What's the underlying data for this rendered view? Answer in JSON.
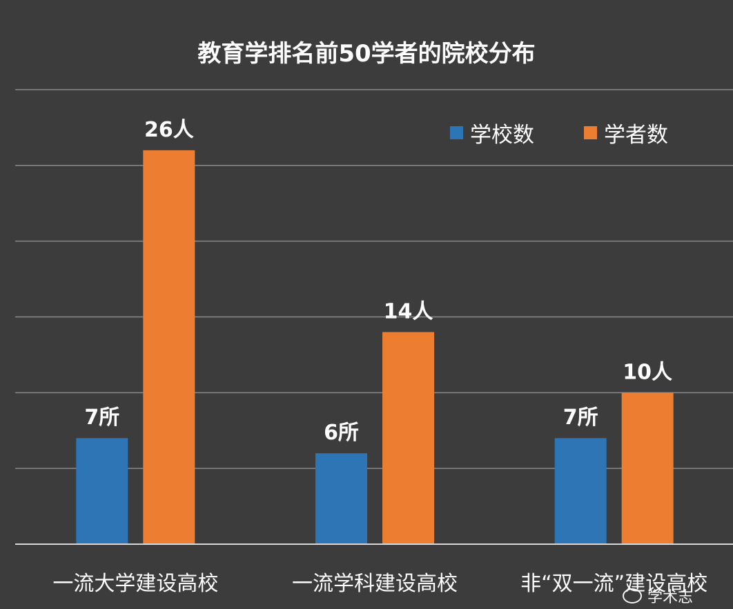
{
  "chart_data": {
    "type": "bar",
    "title": "教育学排名前50学者的院校分布",
    "categories": [
      "一流大学建设高校",
      "一流学科建设高校",
      "非“双一流”建设高校"
    ],
    "series": [
      {
        "name": "学校数",
        "values": [
          7,
          6,
          7
        ],
        "labels": [
          "7所",
          "6所",
          "7所"
        ],
        "color": "#2e75b6"
      },
      {
        "name": "学者数",
        "values": [
          26,
          14,
          10
        ],
        "labels": [
          "26人",
          "14人",
          "10人"
        ],
        "color": "#ed7d31"
      }
    ],
    "ylim": [
      0,
      30
    ],
    "grid": true,
    "legend": "top-right",
    "background": "#3c3c3c",
    "gridcolor": "#8a8a8a"
  },
  "watermark": {
    "text": "学术志"
  }
}
